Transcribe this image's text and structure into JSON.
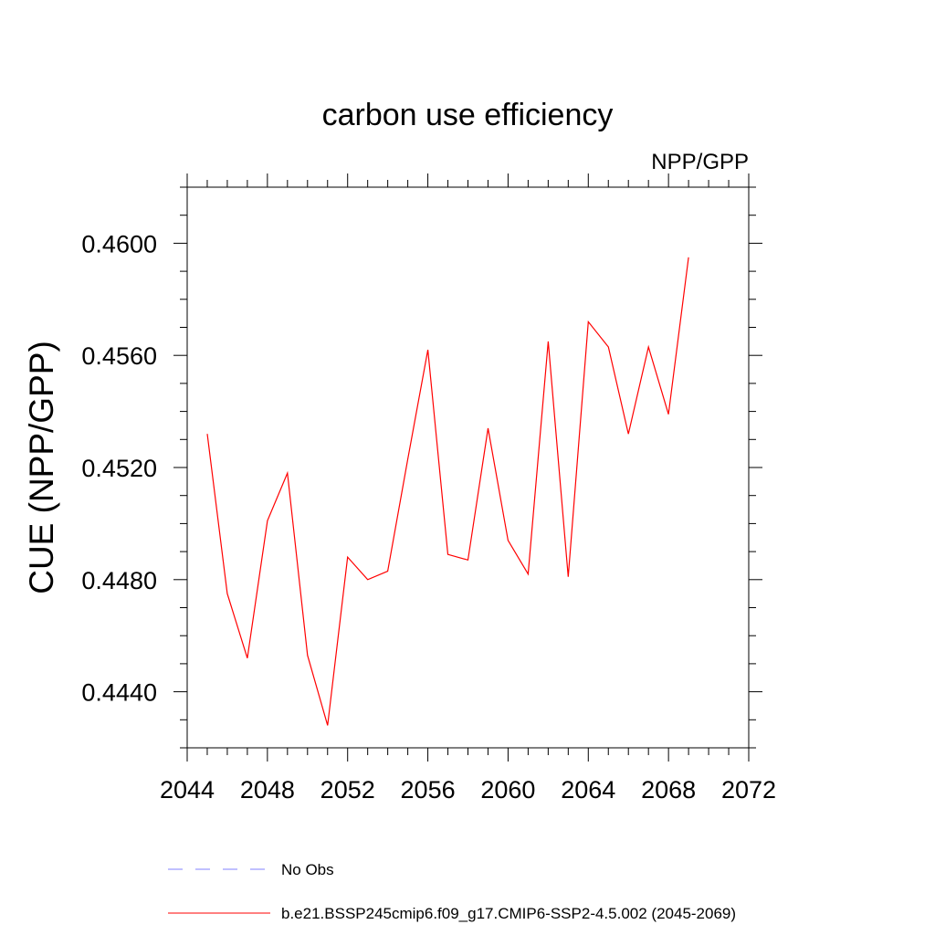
{
  "chart_data": {
    "type": "line",
    "title": "carbon use efficiency",
    "subtitle": "NPP/GPP",
    "xlabel": "",
    "ylabel": "CUE  (NPP/GPP)",
    "xlim": [
      2044,
      2072
    ],
    "ylim": [
      0.442,
      0.462
    ],
    "x_ticks": [
      2044,
      2048,
      2052,
      2056,
      2060,
      2064,
      2068,
      2072
    ],
    "x_tick_labels": [
      "2044",
      "2048",
      "2052",
      "2056",
      "2060",
      "2064",
      "2068",
      "2072"
    ],
    "x_minor_step": 1,
    "y_ticks": [
      0.444,
      0.448,
      0.452,
      0.456,
      0.46
    ],
    "y_tick_labels": [
      "0.4440",
      "0.4480",
      "0.4520",
      "0.4560",
      "0.4600"
    ],
    "y_minor_step": 0.001,
    "grid": false,
    "series": [
      {
        "name": "b.e21.BSSP245cmip6.f09_g17.CMIP6-SSP2-4.5.002 (2045-2069)",
        "color": "#ff0000",
        "style": "solid",
        "x": [
          2045,
          2046,
          2047,
          2048,
          2049,
          2050,
          2051,
          2052,
          2053,
          2054,
          2055,
          2056,
          2057,
          2058,
          2059,
          2060,
          2061,
          2062,
          2063,
          2064,
          2065,
          2066,
          2067,
          2068,
          2069
        ],
        "y": [
          0.4532,
          0.4475,
          0.4452,
          0.4501,
          0.4518,
          0.4453,
          0.4428,
          0.4488,
          0.448,
          0.4483,
          0.4523,
          0.4562,
          0.4489,
          0.4487,
          0.4534,
          0.4494,
          0.4482,
          0.4565,
          0.4481,
          0.4572,
          0.4563,
          0.4532,
          0.4563,
          0.4539,
          0.4595
        ]
      }
    ],
    "legend": {
      "placement": "bottom-left",
      "entries": [
        {
          "label": "No Obs",
          "color": "#8080ff",
          "style": "dashed"
        },
        {
          "label": "b.e21.BSSP245cmip6.f09_g17.CMIP6-SSP2-4.5.002 (2045-2069)",
          "color": "#ff0000",
          "style": "solid"
        }
      ]
    }
  }
}
